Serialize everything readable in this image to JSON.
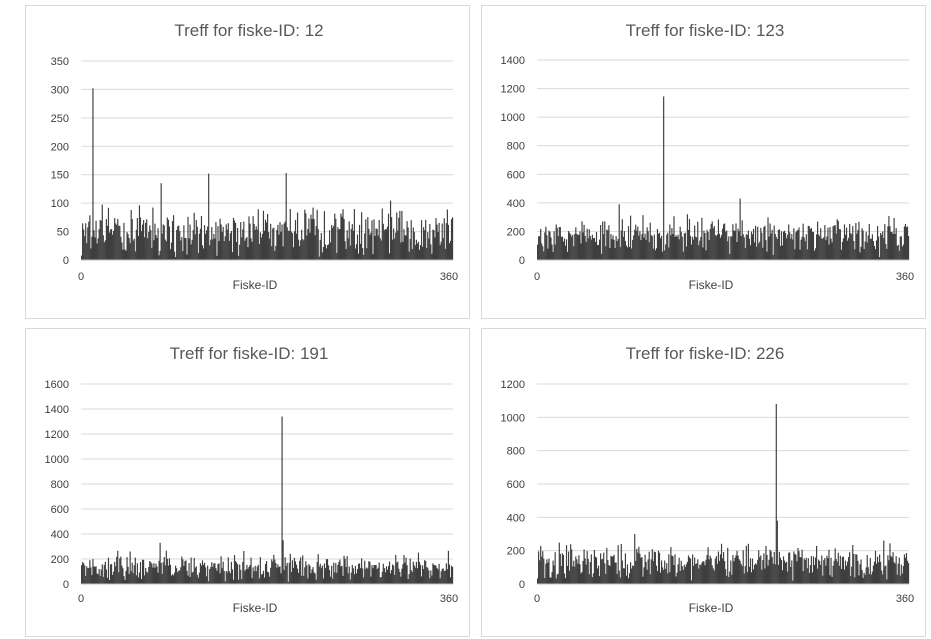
{
  "colors": {
    "bar": "#3f3f3f",
    "grid": "#d9d9d9",
    "text": "#595959",
    "border": "#d9d9d9"
  },
  "chart_data": [
    {
      "type": "bar",
      "title": "Treff for fiske-ID: 12",
      "xlabel": "Fiske-ID",
      "ylabel": "",
      "xlim": [
        0,
        360
      ],
      "x_tick_labels": [
        "0",
        "360"
      ],
      "ylim": [
        0,
        350
      ],
      "y_ticks": [
        0,
        50,
        100,
        150,
        200,
        250,
        300,
        350
      ],
      "grid": true,
      "legend": "none",
      "peak": {
        "x": 12,
        "y": 302
      },
      "secondary_peaks": [
        {
          "x": 124,
          "y": 152
        },
        {
          "x": 199,
          "y": 153
        },
        {
          "x": 78,
          "y": 135
        }
      ],
      "baseline_mean": 55,
      "baseline_spread": 35,
      "seed": 12
    },
    {
      "type": "bar",
      "title": "Treff for fiske-ID: 123",
      "xlabel": "Fiske-ID",
      "ylabel": "",
      "xlim": [
        0,
        360
      ],
      "x_tick_labels": [
        "0",
        "360"
      ],
      "ylim": [
        0,
        1400
      ],
      "y_ticks": [
        0,
        200,
        400,
        600,
        800,
        1000,
        1200,
        1400
      ],
      "grid": true,
      "legend": "none",
      "peak": {
        "x": 123,
        "y": 1145
      },
      "secondary_peaks": [
        {
          "x": 197,
          "y": 430
        },
        {
          "x": 80,
          "y": 390
        }
      ],
      "baseline_mean": 185,
      "baseline_spread": 95,
      "seed": 123
    },
    {
      "type": "bar",
      "title": "Treff for fiske-ID: 191",
      "xlabel": "Fiske-ID",
      "ylabel": "",
      "xlim": [
        0,
        360
      ],
      "x_tick_labels": [
        "0",
        "360"
      ],
      "ylim": [
        0,
        1600
      ],
      "y_ticks": [
        0,
        200,
        400,
        600,
        800,
        1000,
        1200,
        1400,
        1600
      ],
      "grid": true,
      "legend": "none",
      "peak": {
        "x": 195,
        "y": 1340
      },
      "secondary_peaks": [
        {
          "x": 196,
          "y": 350
        },
        {
          "x": 77,
          "y": 330
        }
      ],
      "baseline_mean": 150,
      "baseline_spread": 80,
      "seed": 191
    },
    {
      "type": "bar",
      "title": "Treff for fiske-ID: 226",
      "xlabel": "Fiske-ID",
      "ylabel": "",
      "xlim": [
        0,
        360
      ],
      "x_tick_labels": [
        "0",
        "360"
      ],
      "ylim": [
        0,
        1200
      ],
      "y_ticks": [
        0,
        200,
        400,
        600,
        800,
        1000,
        1200
      ],
      "grid": true,
      "legend": "none",
      "peak": {
        "x": 232,
        "y": 1080
      },
      "secondary_peaks": [
        {
          "x": 233,
          "y": 380
        },
        {
          "x": 95,
          "y": 300
        }
      ],
      "baseline_mean": 150,
      "baseline_spread": 75,
      "seed": 226
    }
  ]
}
